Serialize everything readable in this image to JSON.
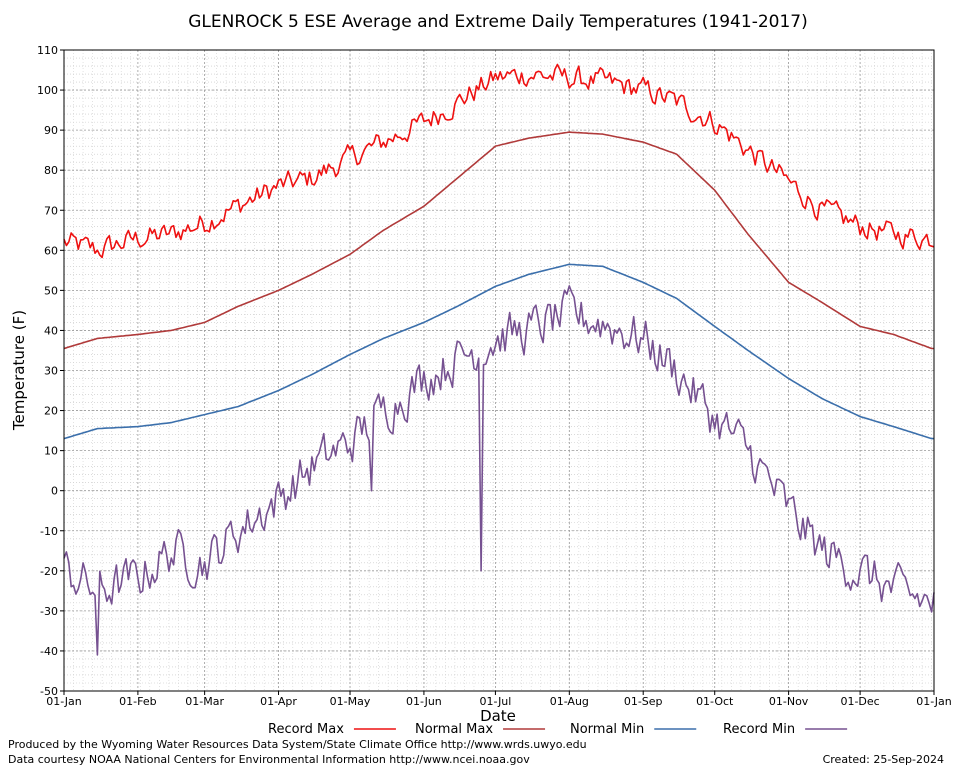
{
  "chart_data": {
    "type": "line",
    "title": "GLENROCK 5 ESE Average and Extreme Daily Temperatures (1941-2017)",
    "xlabel": "Date",
    "ylabel": "Temperature (F)",
    "ylim": [
      -50,
      110
    ],
    "yticks": [
      -50,
      -40,
      -30,
      -20,
      -10,
      0,
      10,
      20,
      30,
      40,
      50,
      60,
      70,
      80,
      90,
      100,
      110
    ],
    "xticks": [
      "01-Jan",
      "01-Feb",
      "01-Mar",
      "01-Apr",
      "01-May",
      "01-Jun",
      "01-Jul",
      "01-Aug",
      "01-Sep",
      "01-Oct",
      "01-Nov",
      "01-Dec",
      "01-Jan"
    ],
    "x_day_of_month_start": [
      1,
      32,
      60,
      91,
      121,
      152,
      182,
      213,
      244,
      274,
      305,
      335,
      366
    ],
    "grid": true,
    "legend_position": "bottom",
    "x": [
      "01-Jan",
      "15-Jan",
      "01-Feb",
      "15-Feb",
      "01-Mar",
      "15-Mar",
      "01-Apr",
      "15-Apr",
      "01-May",
      "15-May",
      "01-Jun",
      "15-Jun",
      "01-Jul",
      "15-Jul",
      "01-Aug",
      "15-Aug",
      "01-Sep",
      "15-Sep",
      "01-Oct",
      "15-Oct",
      "01-Nov",
      "15-Nov",
      "01-Dec",
      "15-Dec",
      "31-Dec"
    ],
    "series": [
      {
        "name": "Record Max",
        "color": "#ee1111",
        "values": [
          62,
          60,
          63,
          64,
          67,
          71,
          76,
          78,
          83,
          87,
          92,
          97,
          103,
          104,
          103,
          102,
          100,
          97,
          92,
          85,
          77,
          70,
          66,
          64,
          63
        ]
      },
      {
        "name": "Normal Max",
        "color": "#b03a3a",
        "values": [
          35.5,
          38,
          39,
          40,
          42,
          46,
          50,
          54,
          59,
          65,
          71,
          78,
          86,
          88,
          89.5,
          89,
          87,
          84,
          75,
          64,
          52,
          47,
          41,
          39,
          35.5
        ]
      },
      {
        "name": "Normal Min",
        "color": "#3b6fab",
        "values": [
          13,
          15.5,
          16,
          17,
          19,
          21,
          25,
          29,
          34,
          38,
          42,
          46,
          51,
          54,
          56.5,
          56,
          52,
          48,
          41,
          35,
          28,
          23,
          18.5,
          16,
          13
        ]
      },
      {
        "name": "Record Min",
        "color": "#765191",
        "values": [
          -20,
          -25,
          -22,
          -15,
          -18,
          -10,
          -2,
          6,
          12,
          20,
          28,
          33,
          38,
          40,
          44,
          42,
          38,
          30,
          18,
          10,
          -5,
          -15,
          -20,
          -25,
          -28
        ]
      }
    ],
    "annotations": [
      {
        "series": "Record Min",
        "x": "25-Jun",
        "y": -20
      },
      {
        "series": "Record Min",
        "x": "10-May",
        "y": 0
      },
      {
        "series": "Record Min",
        "x": "15-Jan",
        "y": -41
      }
    ]
  },
  "footer": {
    "produced_by": "Produced by the Wyoming Water Resources Data System/State Climate Office http://www.wrds.uwyo.edu",
    "courtesy": "Data courtesy NOAA National Centers for Environmental Information http://www.ncei.noaa.gov",
    "created": "Created:  25-Sep-2024"
  }
}
